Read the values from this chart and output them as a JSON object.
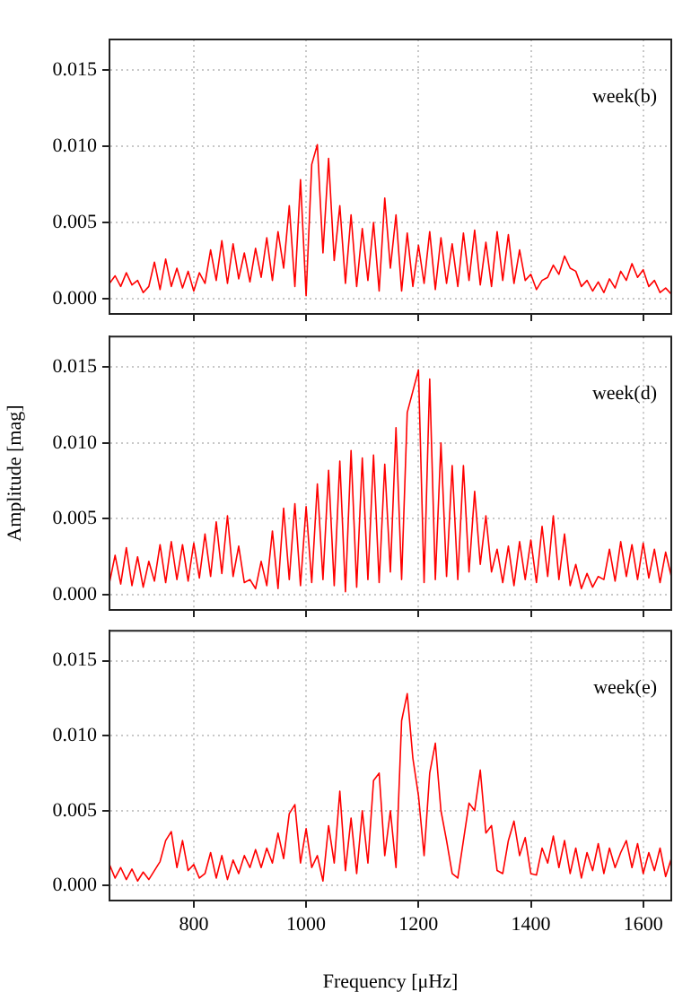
{
  "chart_data": [
    {
      "type": "line",
      "annotations": [
        "week(b)"
      ],
      "grid": true,
      "legend": false,
      "marker": "none",
      "line_style": "solid",
      "tick_labels": "y",
      "xlim": [
        650,
        1650
      ],
      "xticks": [
        800,
        1000,
        1200,
        1400,
        1600
      ],
      "ylim": [
        -0.001,
        0.017
      ],
      "yticks": [
        {
          "value": 0,
          "label": "0.000"
        },
        {
          "value": 0.005,
          "label": "0.005"
        },
        {
          "value": 0.01,
          "label": "0.010"
        },
        {
          "value": 0.015,
          "label": "0.015"
        }
      ],
      "x": [
        650,
        660,
        670,
        680,
        690,
        700,
        710,
        720,
        730,
        740,
        750,
        760,
        770,
        780,
        790,
        800,
        810,
        820,
        830,
        840,
        850,
        860,
        870,
        880,
        890,
        900,
        910,
        920,
        930,
        940,
        950,
        960,
        970,
        980,
        990,
        1000,
        1010,
        1020,
        1030,
        1040,
        1050,
        1060,
        1070,
        1080,
        1090,
        1100,
        1110,
        1120,
        1130,
        1140,
        1150,
        1160,
        1170,
        1180,
        1190,
        1200,
        1210,
        1220,
        1230,
        1240,
        1250,
        1260,
        1270,
        1280,
        1290,
        1300,
        1310,
        1320,
        1330,
        1340,
        1350,
        1360,
        1370,
        1380,
        1390,
        1400,
        1410,
        1420,
        1430,
        1440,
        1450,
        1460,
        1470,
        1480,
        1490,
        1500,
        1510,
        1520,
        1530,
        1540,
        1550,
        1560,
        1570,
        1580,
        1590,
        1600,
        1610,
        1620,
        1630,
        1640,
        1650
      ],
      "series": [
        {
          "color": "#ff0000",
          "values": [
            0.001,
            0.0015,
            0.0008,
            0.0017,
            0.0009,
            0.0012,
            0.0004,
            0.0008,
            0.0024,
            0.0006,
            0.0026,
            0.0008,
            0.002,
            0.0007,
            0.0018,
            0.0005,
            0.0017,
            0.001,
            0.0032,
            0.0012,
            0.0038,
            0.001,
            0.0036,
            0.0013,
            0.003,
            0.0011,
            0.0033,
            0.0014,
            0.004,
            0.0012,
            0.0044,
            0.002,
            0.0061,
            0.0008,
            0.0078,
            0.0002,
            0.0088,
            0.0101,
            0.003,
            0.0092,
            0.0025,
            0.0061,
            0.001,
            0.0055,
            0.0008,
            0.0046,
            0.0012,
            0.005,
            0.0005,
            0.0066,
            0.002,
            0.0055,
            0.0005,
            0.0043,
            0.0008,
            0.0035,
            0.001,
            0.0044,
            0.0006,
            0.004,
            0.001,
            0.0036,
            0.0008,
            0.0043,
            0.0012,
            0.0045,
            0.0009,
            0.0037,
            0.0008,
            0.0044,
            0.0012,
            0.0042,
            0.001,
            0.0032,
            0.0012,
            0.0016,
            0.0006,
            0.0012,
            0.0014,
            0.0022,
            0.0016,
            0.0028,
            0.002,
            0.0018,
            0.0008,
            0.0012,
            0.0005,
            0.0011,
            0.0004,
            0.0013,
            0.0007,
            0.0018,
            0.0012,
            0.0023,
            0.0014,
            0.0019,
            0.0008,
            0.0012,
            0.0004,
            0.0007,
            0.0003
          ]
        }
      ]
    },
    {
      "type": "line",
      "ylabel": "Amplitude [mag]",
      "annotations": [
        "week(d)"
      ],
      "grid": true,
      "legend": false,
      "marker": "none",
      "line_style": "solid",
      "tick_labels": "y",
      "xlim": [
        650,
        1650
      ],
      "xticks": [
        800,
        1000,
        1200,
        1400,
        1600
      ],
      "ylim": [
        -0.001,
        0.017
      ],
      "yticks": [
        {
          "value": 0,
          "label": "0.000"
        },
        {
          "value": 0.005,
          "label": "0.005"
        },
        {
          "value": 0.01,
          "label": "0.010"
        },
        {
          "value": 0.015,
          "label": "0.015"
        }
      ],
      "x": [
        650,
        660,
        670,
        680,
        690,
        700,
        710,
        720,
        730,
        740,
        750,
        760,
        770,
        780,
        790,
        800,
        810,
        820,
        830,
        840,
        850,
        860,
        870,
        880,
        890,
        900,
        910,
        920,
        930,
        940,
        950,
        960,
        970,
        980,
        990,
        1000,
        1010,
        1020,
        1030,
        1040,
        1050,
        1060,
        1070,
        1080,
        1090,
        1100,
        1110,
        1120,
        1130,
        1140,
        1150,
        1160,
        1170,
        1180,
        1190,
        1200,
        1210,
        1220,
        1230,
        1240,
        1250,
        1260,
        1270,
        1280,
        1290,
        1300,
        1310,
        1320,
        1330,
        1340,
        1350,
        1360,
        1370,
        1380,
        1390,
        1400,
        1410,
        1420,
        1430,
        1440,
        1450,
        1460,
        1470,
        1480,
        1490,
        1500,
        1510,
        1520,
        1530,
        1540,
        1550,
        1560,
        1570,
        1580,
        1590,
        1600,
        1610,
        1620,
        1630,
        1640,
        1650
      ],
      "series": [
        {
          "color": "#ff0000",
          "values": [
            0.0008,
            0.0026,
            0.0007,
            0.0031,
            0.0006,
            0.0025,
            0.0005,
            0.0022,
            0.0009,
            0.0033,
            0.0008,
            0.0035,
            0.001,
            0.0033,
            0.0009,
            0.0034,
            0.0011,
            0.004,
            0.0012,
            0.0048,
            0.0014,
            0.0052,
            0.0012,
            0.0032,
            0.0008,
            0.001,
            0.0004,
            0.0022,
            0.0006,
            0.0042,
            0.0004,
            0.0057,
            0.001,
            0.006,
            0.0006,
            0.0058,
            0.0008,
            0.0073,
            0.001,
            0.0082,
            0.0006,
            0.0088,
            0.0002,
            0.0095,
            0.0005,
            0.009,
            0.001,
            0.0092,
            0.0008,
            0.0086,
            0.0015,
            0.011,
            0.001,
            0.012,
            0.0134,
            0.0148,
            0.0008,
            0.0142,
            0.001,
            0.01,
            0.0012,
            0.0085,
            0.001,
            0.0085,
            0.0015,
            0.0068,
            0.002,
            0.0052,
            0.0015,
            0.003,
            0.0008,
            0.0032,
            0.0006,
            0.0035,
            0.001,
            0.0036,
            0.0008,
            0.0045,
            0.0012,
            0.0052,
            0.001,
            0.004,
            0.0006,
            0.002,
            0.0004,
            0.0014,
            0.0005,
            0.0012,
            0.001,
            0.003,
            0.0009,
            0.0035,
            0.0012,
            0.0033,
            0.001,
            0.0034,
            0.0011,
            0.003,
            0.0008,
            0.0028,
            0.0012
          ]
        }
      ]
    },
    {
      "type": "line",
      "xlabel": "Frequency [μHz]",
      "annotations": [
        "week(e)"
      ],
      "grid": true,
      "legend": false,
      "marker": "none",
      "line_style": "solid",
      "xlim": [
        650,
        1650
      ],
      "xticks": [
        800,
        1000,
        1200,
        1400,
        1600
      ],
      "ylim": [
        -0.001,
        0.017
      ],
      "yticks": [
        {
          "value": 0,
          "label": "0.000"
        },
        {
          "value": 0.005,
          "label": "0.005"
        },
        {
          "value": 0.01,
          "label": "0.010"
        },
        {
          "value": 0.015,
          "label": "0.015"
        }
      ],
      "x": [
        650,
        660,
        670,
        680,
        690,
        700,
        710,
        720,
        730,
        740,
        750,
        760,
        770,
        780,
        790,
        800,
        810,
        820,
        830,
        840,
        850,
        860,
        870,
        880,
        890,
        900,
        910,
        920,
        930,
        940,
        950,
        960,
        970,
        980,
        990,
        1000,
        1010,
        1020,
        1030,
        1040,
        1050,
        1060,
        1070,
        1080,
        1090,
        1100,
        1110,
        1120,
        1130,
        1140,
        1150,
        1160,
        1170,
        1180,
        1190,
        1200,
        1210,
        1220,
        1230,
        1240,
        1250,
        1260,
        1270,
        1280,
        1290,
        1300,
        1310,
        1320,
        1330,
        1340,
        1350,
        1360,
        1370,
        1380,
        1390,
        1400,
        1410,
        1420,
        1430,
        1440,
        1450,
        1460,
        1470,
        1480,
        1490,
        1500,
        1510,
        1520,
        1530,
        1540,
        1550,
        1560,
        1570,
        1580,
        1590,
        1600,
        1610,
        1620,
        1630,
        1640,
        1650
      ],
      "series": [
        {
          "color": "#ff0000",
          "values": [
            0.0014,
            0.0005,
            0.0012,
            0.0004,
            0.0011,
            0.0003,
            0.0009,
            0.0004,
            0.001,
            0.0016,
            0.003,
            0.0036,
            0.0012,
            0.003,
            0.001,
            0.0014,
            0.0005,
            0.0008,
            0.0022,
            0.0005,
            0.002,
            0.0004,
            0.0017,
            0.0008,
            0.002,
            0.0012,
            0.0024,
            0.0012,
            0.0025,
            0.0015,
            0.0035,
            0.0018,
            0.0048,
            0.0054,
            0.0015,
            0.0038,
            0.0012,
            0.002,
            0.0003,
            0.004,
            0.0015,
            0.0063,
            0.001,
            0.0045,
            0.0008,
            0.005,
            0.0015,
            0.007,
            0.0075,
            0.002,
            0.005,
            0.0012,
            0.011,
            0.0128,
            0.0085,
            0.006,
            0.002,
            0.0075,
            0.0095,
            0.005,
            0.003,
            0.0008,
            0.0005,
            0.003,
            0.0055,
            0.005,
            0.0077,
            0.0035,
            0.004,
            0.001,
            0.0008,
            0.003,
            0.0043,
            0.002,
            0.0032,
            0.0008,
            0.0007,
            0.0025,
            0.0015,
            0.0033,
            0.0012,
            0.003,
            0.0008,
            0.0025,
            0.0005,
            0.0022,
            0.001,
            0.0028,
            0.0008,
            0.0025,
            0.0012,
            0.0022,
            0.003,
            0.0012,
            0.0028,
            0.0008,
            0.0022,
            0.001,
            0.0025,
            0.0006,
            0.0018
          ]
        }
      ]
    }
  ]
}
